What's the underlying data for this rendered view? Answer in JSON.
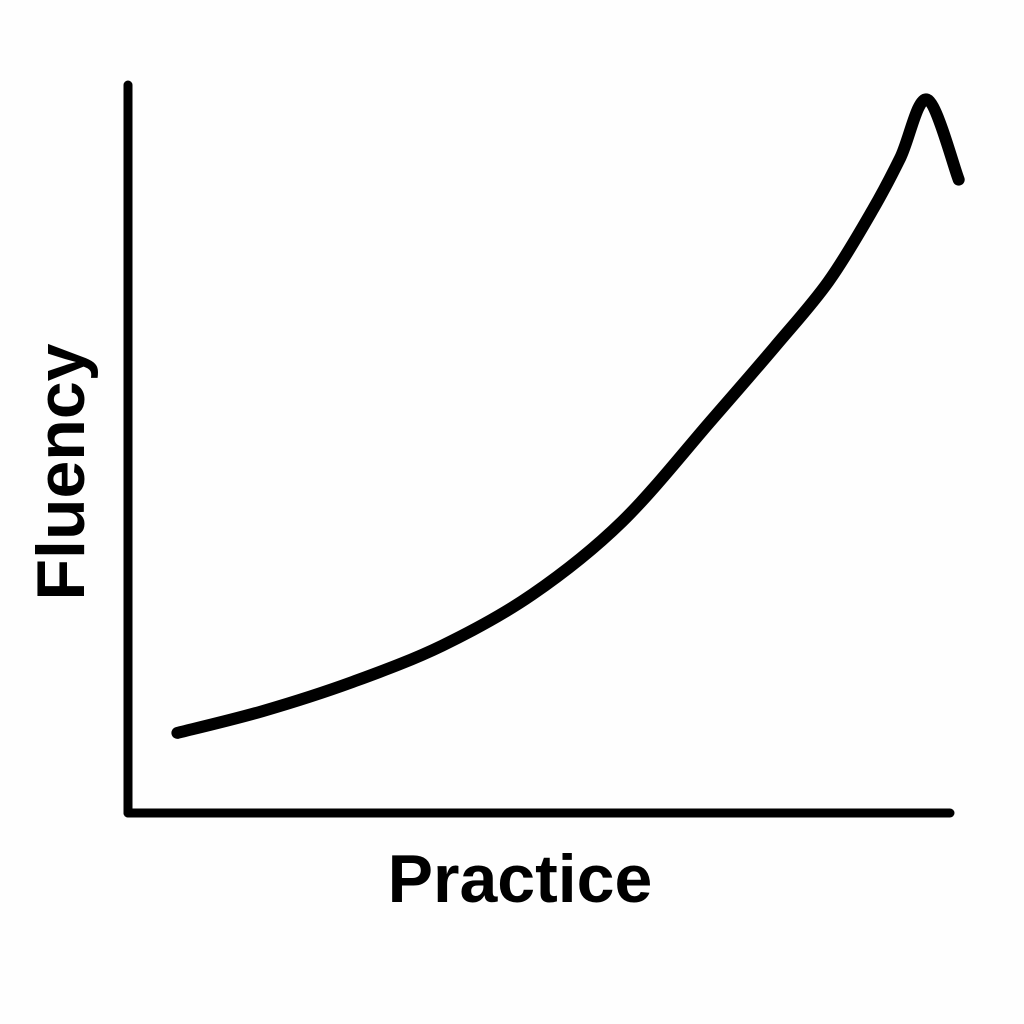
{
  "chart_data": {
    "type": "line",
    "title": "",
    "xlabel": "Practice",
    "ylabel": "Fluency",
    "xlim": [
      0,
      1
    ],
    "ylim": [
      0,
      1
    ],
    "grid": false,
    "legend": "none",
    "colors": {
      "line": "#000000",
      "axes": "#000000",
      "background": "#fefefe"
    },
    "series": [
      {
        "x": [
          0.055,
          0.15,
          0.25,
          0.35,
          0.45,
          0.55,
          0.65,
          0.72,
          0.78,
          0.83,
          0.86,
          0.89,
          0.925
        ],
        "values": [
          0.11,
          0.14,
          0.18,
          0.23,
          0.3,
          0.4,
          0.54,
          0.64,
          0.73,
          0.83,
          0.9,
          0.98,
          0.87
        ]
      }
    ]
  }
}
